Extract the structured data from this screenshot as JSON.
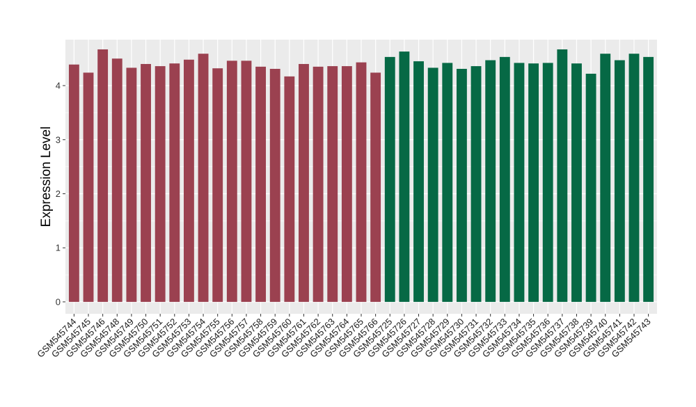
{
  "chart_data": {
    "type": "bar",
    "title": "",
    "xlabel": "",
    "ylabel": "Expression Level",
    "ylim": [
      -0.22,
      4.85
    ],
    "yticks": [
      0,
      1,
      2,
      3,
      4
    ],
    "grid": true,
    "legend": "none",
    "categories": [
      "GSM545744",
      "GSM545745",
      "GSM545746",
      "GSM545748",
      "GSM545749",
      "GSM545750",
      "GSM545751",
      "GSM545752",
      "GSM545753",
      "GSM545754",
      "GSM545755",
      "GSM545756",
      "GSM545757",
      "GSM545758",
      "GSM545759",
      "GSM545760",
      "GSM545761",
      "GSM545762",
      "GSM545763",
      "GSM545764",
      "GSM545765",
      "GSM545766",
      "GSM545725",
      "GSM545726",
      "GSM545727",
      "GSM545728",
      "GSM545729",
      "GSM545730",
      "GSM545731",
      "GSM545732",
      "GSM545733",
      "GSM545734",
      "GSM545735",
      "GSM545736",
      "GSM545737",
      "GSM545738",
      "GSM545739",
      "GSM545740",
      "GSM545741",
      "GSM545742",
      "GSM545743"
    ],
    "values": [
      4.39,
      4.24,
      4.67,
      4.5,
      4.33,
      4.4,
      4.36,
      4.41,
      4.48,
      4.59,
      4.32,
      4.46,
      4.46,
      4.35,
      4.31,
      4.17,
      4.4,
      4.35,
      4.36,
      4.36,
      4.43,
      4.24,
      4.53,
      4.63,
      4.45,
      4.33,
      4.42,
      4.31,
      4.36,
      4.47,
      4.53,
      4.42,
      4.41,
      4.42,
      4.67,
      4.41,
      4.22,
      4.59,
      4.47,
      4.59,
      4.53
    ],
    "group_sizes": [
      22,
      19
    ],
    "group_colors": [
      "#9b4150",
      "#066945"
    ]
  },
  "style": {
    "panel_bg": "#ebebeb",
    "grid_color": "#ffffff",
    "tick_color": "#333333"
  }
}
